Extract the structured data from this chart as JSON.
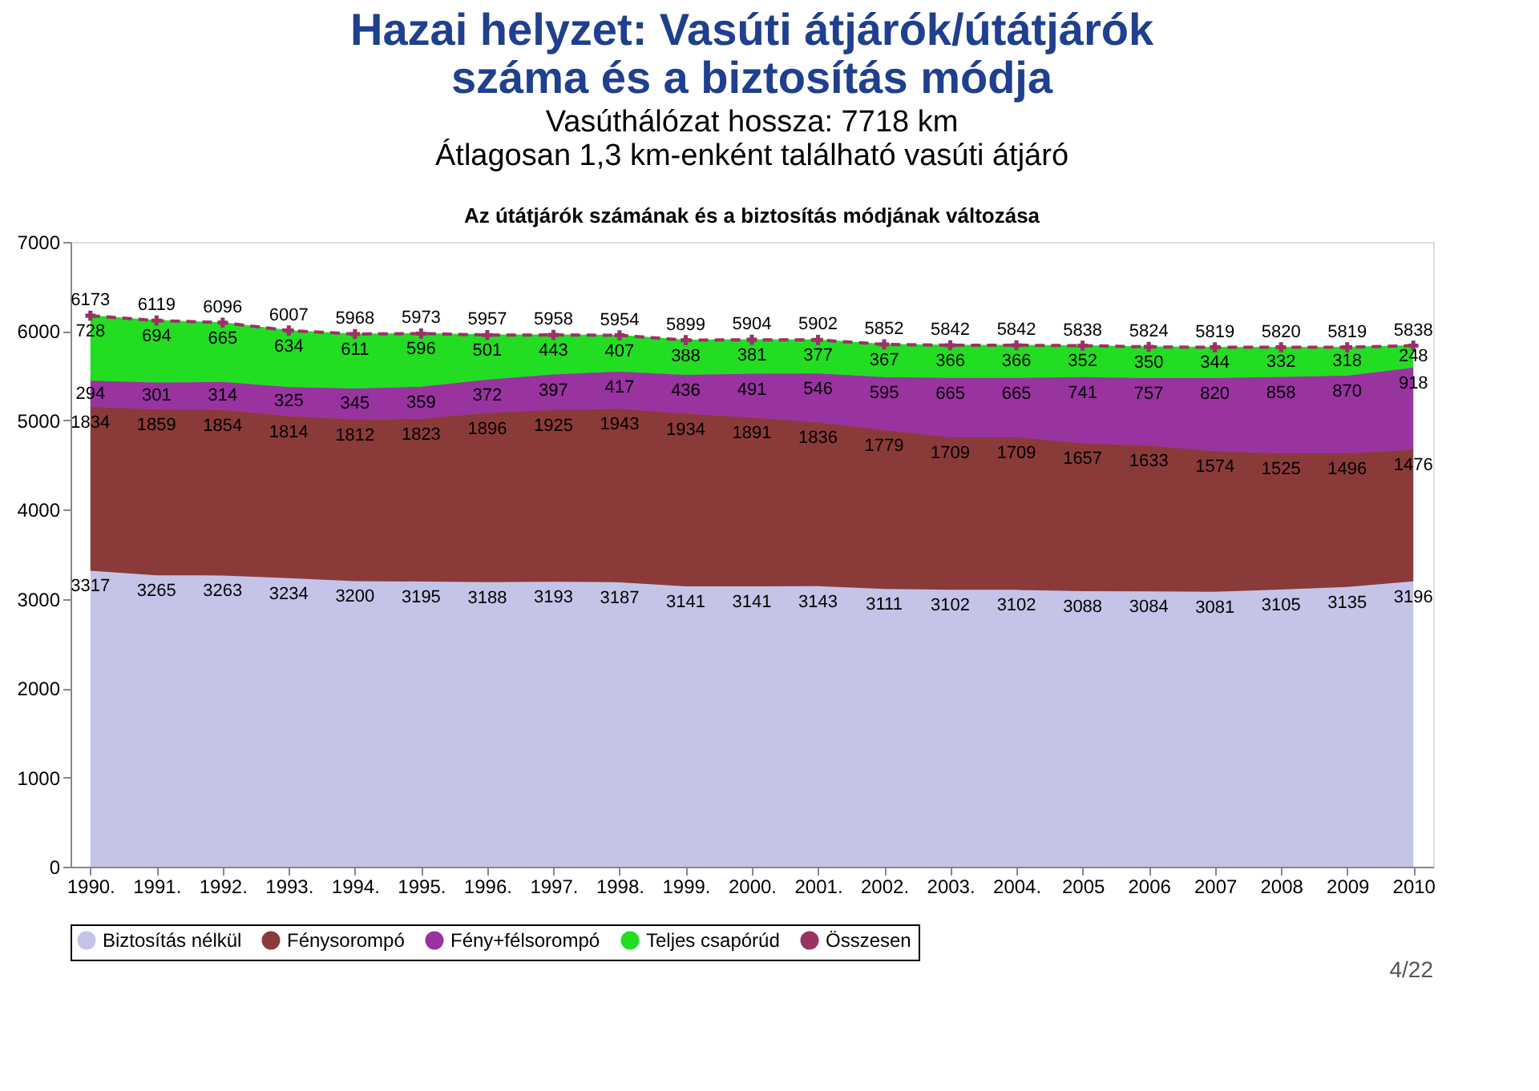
{
  "chart_data": {
    "type": "area",
    "stacked": true,
    "title": "Hazai helyzet: Vasúti átjárók/útátjárók száma és a biztosítás módja",
    "subtitle": "Vasúthálózat hossza: 7718 km\nÁtlagosan 1,3 km-enként található vasúti átjáró",
    "categories": [
      "1990.",
      "1991.",
      "1992.",
      "1993.",
      "1994.",
      "1995.",
      "1996.",
      "1997.",
      "1998.",
      "1999.",
      "2000.",
      "2001.",
      "2002.",
      "2003.",
      "2004.",
      "2005",
      "2006",
      "2007",
      "2008",
      "2009",
      "2010"
    ],
    "series": [
      {
        "name": "Biztosítás nélkül",
        "color": "#c4c4e8",
        "values": [
          3317,
          3265,
          3263,
          3234,
          3200,
          3195,
          3188,
          3193,
          3187,
          3141,
          3141,
          3143,
          3111,
          3102,
          3102,
          3088,
          3084,
          3081,
          3105,
          3135,
          3196
        ]
      },
      {
        "name": "Fénysorompó",
        "color": "#8b3a3a",
        "values": [
          1834,
          1859,
          1854,
          1814,
          1812,
          1823,
          1896,
          1925,
          1943,
          1934,
          1891,
          1836,
          1779,
          1709,
          1709,
          1657,
          1633,
          1574,
          1525,
          1496,
          1476
        ]
      },
      {
        "name": "Fény+félsorompó",
        "color": "#9933a0",
        "values": [
          294,
          301,
          314,
          325,
          345,
          359,
          372,
          397,
          417,
          436,
          491,
          546,
          595,
          665,
          665,
          741,
          757,
          820,
          858,
          870,
          918
        ]
      },
      {
        "name": "Teljes csapórúd",
        "color": "#22dd22",
        "values": [
          728,
          694,
          665,
          634,
          611,
          596,
          501,
          443,
          407,
          388,
          381,
          377,
          367,
          366,
          366,
          352,
          350,
          344,
          332,
          318,
          248
        ]
      },
      {
        "name": "Összesen",
        "type": "line",
        "marker": "cross",
        "line_style": "dashed",
        "color": "#993366",
        "values": [
          6173,
          6119,
          6096,
          6007,
          5968,
          5973,
          5957,
          5958,
          5954,
          5899,
          5904,
          5902,
          5852,
          5842,
          5842,
          5838,
          5824,
          5819,
          5820,
          5819,
          5838
        ]
      }
    ],
    "ylim": [
      0,
      7000
    ],
    "yticks": [
      0,
      1000,
      2000,
      3000,
      4000,
      5000,
      6000,
      7000
    ],
    "grid": false,
    "legend": "bottom",
    "data_labels": true,
    "annotations": [
      "Az útátjárók számának és a biztosítás módjának változása",
      "4/22"
    ]
  }
}
